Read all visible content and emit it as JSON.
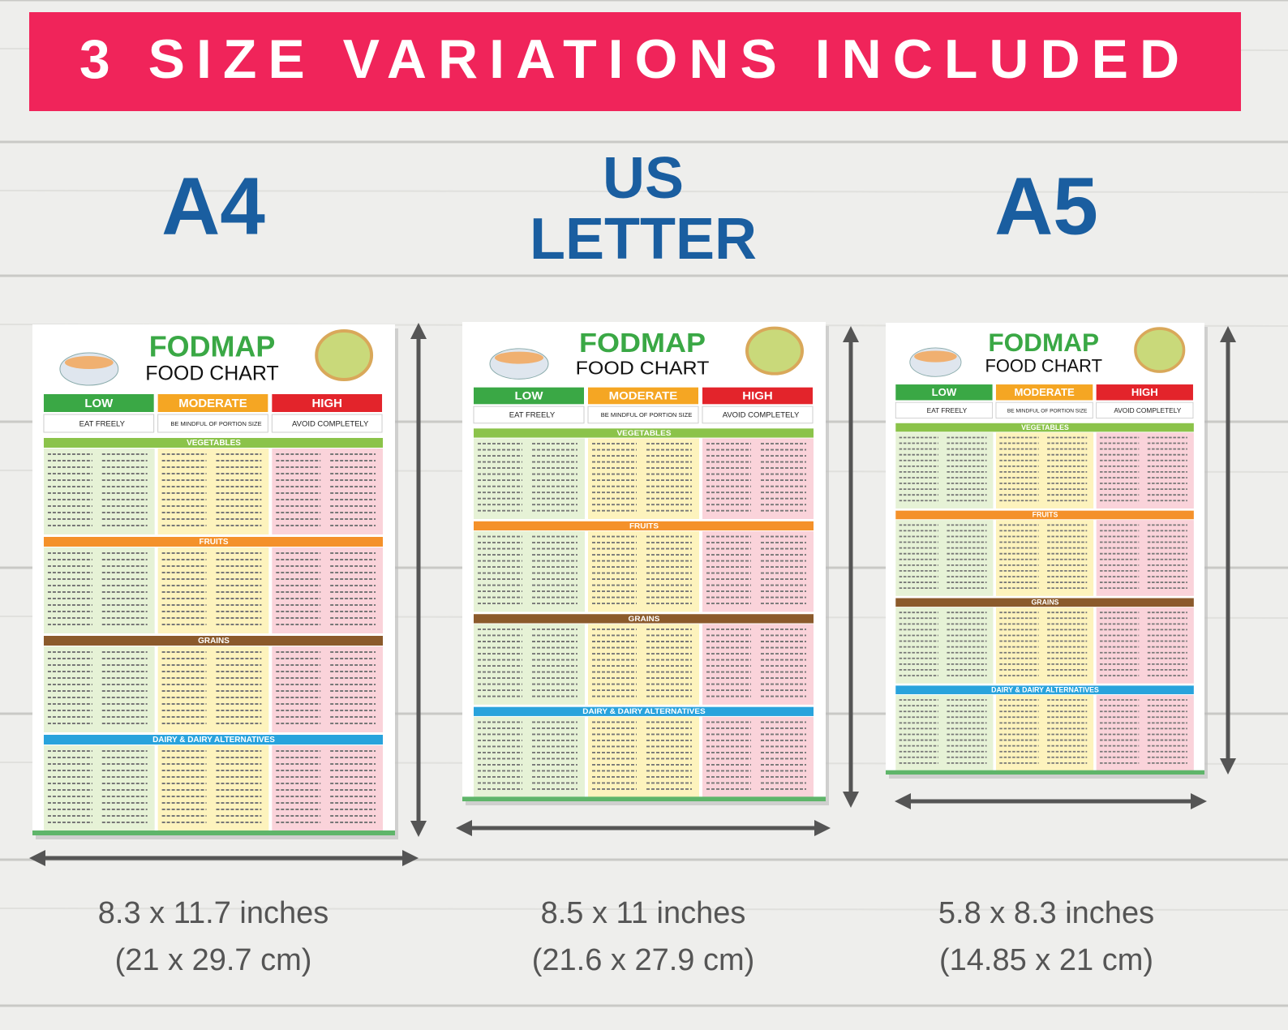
{
  "banner": "3 SIZE VARIATIONS INCLUDED",
  "sizes": [
    {
      "name_lines": [
        "A4"
      ],
      "dimensions": "8.3 x 11.7 inches",
      "metric": "(21 x 29.7 cm)"
    },
    {
      "name_lines": [
        "US",
        "LETTER"
      ],
      "dimensions": "8.5 x 11 inches",
      "metric": "(21.6 x 27.9 cm)"
    },
    {
      "name_lines": [
        "A5"
      ],
      "dimensions": "5.8 x 8.3 inches",
      "metric": "(14.85 x 21 cm)"
    }
  ],
  "poster": {
    "title": "FODMAP",
    "subtitle": "FOOD CHART",
    "levels": [
      {
        "label": "LOW",
        "note": "EAT FREELY"
      },
      {
        "label": "MODERATE",
        "note": "BE MINDFUL OF PORTION SIZE"
      },
      {
        "label": "HIGH",
        "note": "AVOID COMPLETELY"
      }
    ],
    "sections": [
      "VEGETABLES",
      "FRUITS",
      "GRAINS",
      "DAIRY & DAIRY ALTERNATIVES"
    ]
  }
}
